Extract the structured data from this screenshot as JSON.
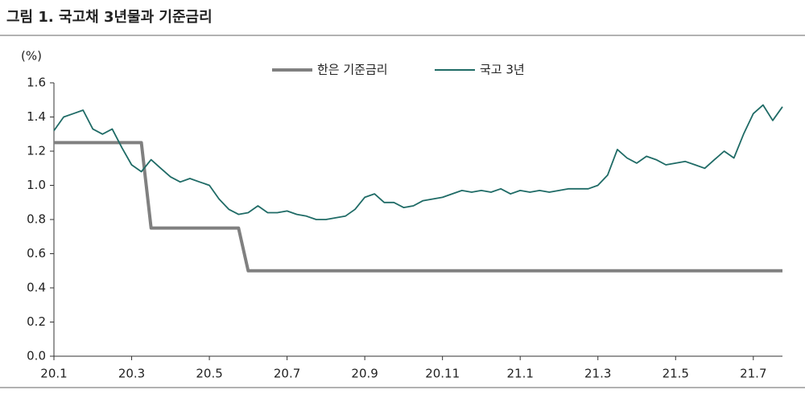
{
  "chart_data": {
    "type": "line",
    "title": "그림 1. 국고채 3년물과 기준금리",
    "y_label": "(%)",
    "categories": [
      "20.1",
      null,
      null,
      null,
      null,
      null,
      null,
      null,
      "20.3",
      null,
      null,
      null,
      null,
      null,
      null,
      null,
      "20.5",
      null,
      null,
      null,
      null,
      null,
      null,
      null,
      "20.7",
      null,
      null,
      null,
      null,
      null,
      null,
      null,
      "20.9",
      null,
      null,
      null,
      null,
      null,
      null,
      null,
      "20.11",
      null,
      null,
      null,
      null,
      null,
      null,
      null,
      "21.1",
      null,
      null,
      null,
      null,
      null,
      null,
      null,
      "21.3",
      null,
      null,
      null,
      null,
      null,
      null,
      null,
      "21.5",
      null,
      null,
      null,
      null,
      null,
      null,
      null,
      "21.7",
      null,
      null,
      null
    ],
    "series": [
      {
        "name": "한은 기준금리",
        "color": "#808080",
        "values": [
          1.25,
          1.25,
          1.25,
          1.25,
          1.25,
          1.25,
          1.25,
          1.25,
          1.25,
          1.25,
          0.75,
          0.75,
          0.75,
          0.75,
          0.75,
          0.75,
          0.75,
          0.75,
          0.75,
          0.75,
          0.5,
          0.5,
          0.5,
          0.5,
          0.5,
          0.5,
          0.5,
          0.5,
          0.5,
          0.5,
          0.5,
          0.5,
          0.5,
          0.5,
          0.5,
          0.5,
          0.5,
          0.5,
          0.5,
          0.5,
          0.5,
          0.5,
          0.5,
          0.5,
          0.5,
          0.5,
          0.5,
          0.5,
          0.5,
          0.5,
          0.5,
          0.5,
          0.5,
          0.5,
          0.5,
          0.5,
          0.5,
          0.5,
          0.5,
          0.5,
          0.5,
          0.5,
          0.5,
          0.5,
          0.5,
          0.5,
          0.5,
          0.5,
          0.5,
          0.5,
          0.5,
          0.5,
          0.5,
          0.5,
          0.5,
          0.5
        ]
      },
      {
        "name": "국고 3년",
        "color": "#1f6b66",
        "values": [
          1.32,
          1.4,
          1.42,
          1.44,
          1.33,
          1.3,
          1.33,
          1.22,
          1.12,
          1.08,
          1.15,
          1.1,
          1.05,
          1.02,
          1.04,
          1.02,
          1.0,
          0.92,
          0.86,
          0.83,
          0.84,
          0.88,
          0.84,
          0.84,
          0.85,
          0.83,
          0.82,
          0.8,
          0.8,
          0.81,
          0.82,
          0.86,
          0.93,
          0.95,
          0.9,
          0.9,
          0.87,
          0.88,
          0.91,
          0.92,
          0.93,
          0.95,
          0.97,
          0.96,
          0.97,
          0.96,
          0.98,
          0.95,
          0.97,
          0.96,
          0.97,
          0.96,
          0.97,
          0.98,
          0.98,
          0.98,
          1.0,
          1.06,
          1.21,
          1.16,
          1.13,
          1.17,
          1.15,
          1.12,
          1.13,
          1.14,
          1.12,
          1.1,
          1.15,
          1.2,
          1.16,
          1.3,
          1.42,
          1.47,
          1.38,
          1.46
        ]
      }
    ],
    "ylim": [
      0,
      1.6
    ],
    "yticks": [
      {
        "value": 0,
        "label": "0.0"
      },
      0.2,
      0.4,
      0.6,
      0.8,
      {
        "value": 1,
        "label": "1.0"
      },
      1.2,
      1.4,
      1.6
    ]
  }
}
